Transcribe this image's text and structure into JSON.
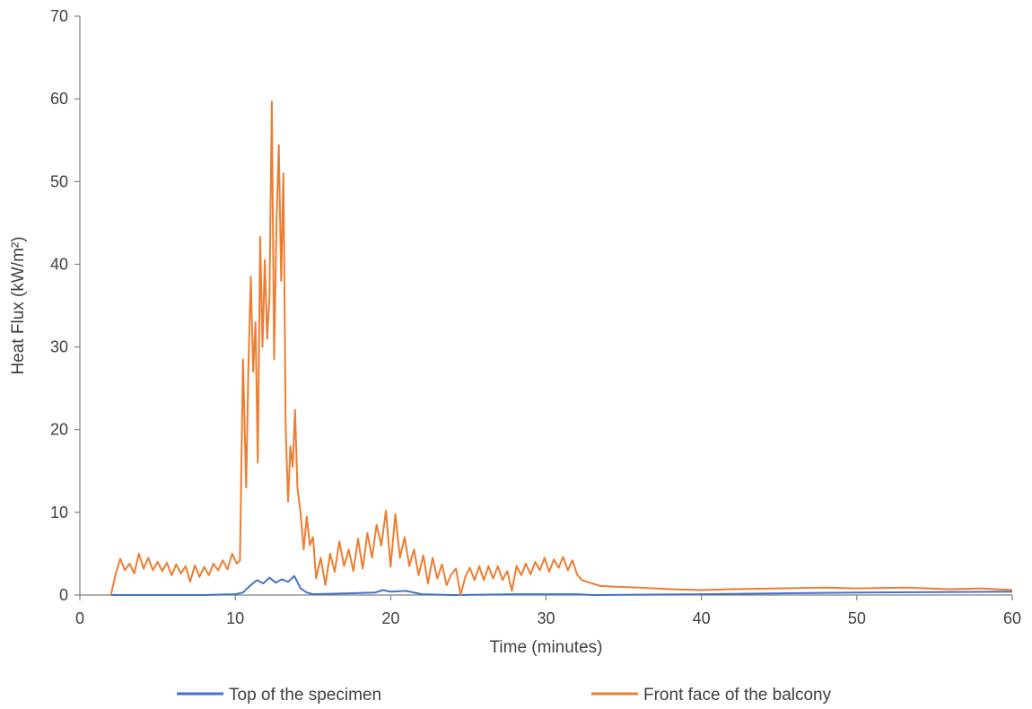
{
  "chart_data": {
    "type": "line",
    "xlabel": "Time (minutes)",
    "ylabel": "Heat Flux (kW/m²)",
    "xlim": [
      0,
      60
    ],
    "ylim": [
      0,
      70
    ],
    "x_ticks": [
      "0",
      "10",
      "20",
      "30",
      "40",
      "50",
      "60"
    ],
    "y_ticks": [
      "0",
      "10",
      "20",
      "30",
      "40",
      "50",
      "60",
      "70"
    ],
    "grid": false,
    "legend_position": "bottom",
    "series": [
      {
        "name": "Top of the specimen",
        "color": "#4472c4",
        "points": [
          [
            2,
            0
          ],
          [
            5,
            0
          ],
          [
            8,
            0
          ],
          [
            10,
            0.1
          ],
          [
            10.5,
            0.3
          ],
          [
            11,
            1.2
          ],
          [
            11.4,
            1.8
          ],
          [
            11.8,
            1.4
          ],
          [
            12.2,
            2.1
          ],
          [
            12.6,
            1.5
          ],
          [
            13,
            1.9
          ],
          [
            13.4,
            1.6
          ],
          [
            13.8,
            2.3
          ],
          [
            14.2,
            0.8
          ],
          [
            14.6,
            0.3
          ],
          [
            15,
            0.1
          ],
          [
            17,
            0.2
          ],
          [
            19,
            0.3
          ],
          [
            19.5,
            0.6
          ],
          [
            20,
            0.4
          ],
          [
            21,
            0.5
          ],
          [
            22,
            0.1
          ],
          [
            24,
            0
          ],
          [
            28,
            0.1
          ],
          [
            32,
            0.1
          ],
          [
            33,
            0
          ],
          [
            40,
            0.1
          ],
          [
            50,
            0.3
          ],
          [
            60,
            0.4
          ]
        ]
      },
      {
        "name": "Front face of the balcony",
        "color": "#ed7d31",
        "points": [
          [
            2.0,
            0
          ],
          [
            2.3,
            2.5
          ],
          [
            2.6,
            4.4
          ],
          [
            2.9,
            3.0
          ],
          [
            3.2,
            3.8
          ],
          [
            3.5,
            2.6
          ],
          [
            3.8,
            5.0
          ],
          [
            4.1,
            3.2
          ],
          [
            4.4,
            4.5
          ],
          [
            4.7,
            3.0
          ],
          [
            5.0,
            4.0
          ],
          [
            5.3,
            2.9
          ],
          [
            5.6,
            3.9
          ],
          [
            5.9,
            2.4
          ],
          [
            6.2,
            3.7
          ],
          [
            6.5,
            2.6
          ],
          [
            6.8,
            3.5
          ],
          [
            7.1,
            1.6
          ],
          [
            7.4,
            3.6
          ],
          [
            7.7,
            2.2
          ],
          [
            8.0,
            3.4
          ],
          [
            8.3,
            2.4
          ],
          [
            8.6,
            3.8
          ],
          [
            8.9,
            3.0
          ],
          [
            9.2,
            4.2
          ],
          [
            9.5,
            3.1
          ],
          [
            9.8,
            5.0
          ],
          [
            10.1,
            3.8
          ],
          [
            10.3,
            4.2
          ],
          [
            10.5,
            28.5
          ],
          [
            10.7,
            13.0
          ],
          [
            10.85,
            28.0
          ],
          [
            11.0,
            38.5
          ],
          [
            11.15,
            27.0
          ],
          [
            11.3,
            33.0
          ],
          [
            11.45,
            16.0
          ],
          [
            11.6,
            43.3
          ],
          [
            11.75,
            30.0
          ],
          [
            11.9,
            40.5
          ],
          [
            12.05,
            31.0
          ],
          [
            12.2,
            36.0
          ],
          [
            12.35,
            59.7
          ],
          [
            12.5,
            28.5
          ],
          [
            12.65,
            45.0
          ],
          [
            12.8,
            54.4
          ],
          [
            12.95,
            38.0
          ],
          [
            13.1,
            51.0
          ],
          [
            13.25,
            20.0
          ],
          [
            13.4,
            11.3
          ],
          [
            13.55,
            18.0
          ],
          [
            13.7,
            15.5
          ],
          [
            13.85,
            22.4
          ],
          [
            14.0,
            13.0
          ],
          [
            14.2,
            10.0
          ],
          [
            14.4,
            5.5
          ],
          [
            14.6,
            9.5
          ],
          [
            14.8,
            6.0
          ],
          [
            15.0,
            7.0
          ],
          [
            15.2,
            2.0
          ],
          [
            15.5,
            4.5
          ],
          [
            15.8,
            1.2
          ],
          [
            16.1,
            5.0
          ],
          [
            16.4,
            2.8
          ],
          [
            16.7,
            6.5
          ],
          [
            17.0,
            3.5
          ],
          [
            17.3,
            5.5
          ],
          [
            17.6,
            2.9
          ],
          [
            17.9,
            6.8
          ],
          [
            18.2,
            3.2
          ],
          [
            18.5,
            7.5
          ],
          [
            18.8,
            4.5
          ],
          [
            19.1,
            8.5
          ],
          [
            19.4,
            6.0
          ],
          [
            19.7,
            10.2
          ],
          [
            20.0,
            3.4
          ],
          [
            20.3,
            9.8
          ],
          [
            20.6,
            4.5
          ],
          [
            20.9,
            7.0
          ],
          [
            21.2,
            3.5
          ],
          [
            21.5,
            5.5
          ],
          [
            21.8,
            2.4
          ],
          [
            22.1,
            4.8
          ],
          [
            22.4,
            1.4
          ],
          [
            22.7,
            4.5
          ],
          [
            23.0,
            2.0
          ],
          [
            23.3,
            3.7
          ],
          [
            23.6,
            1.2
          ],
          [
            23.9,
            2.5
          ],
          [
            24.2,
            3.2
          ],
          [
            24.5,
            0.0
          ],
          [
            24.8,
            2.2
          ],
          [
            25.1,
            3.3
          ],
          [
            25.4,
            1.8
          ],
          [
            25.7,
            3.5
          ],
          [
            26.0,
            1.8
          ],
          [
            26.3,
            3.5
          ],
          [
            26.6,
            2.0
          ],
          [
            26.9,
            3.5
          ],
          [
            27.2,
            1.8
          ],
          [
            27.5,
            2.9
          ],
          [
            27.8,
            0.5
          ],
          [
            28.1,
            3.5
          ],
          [
            28.4,
            2.4
          ],
          [
            28.7,
            3.8
          ],
          [
            29.0,
            2.5
          ],
          [
            29.3,
            4.0
          ],
          [
            29.6,
            3.0
          ],
          [
            29.9,
            4.5
          ],
          [
            30.2,
            2.8
          ],
          [
            30.5,
            4.3
          ],
          [
            30.8,
            3.3
          ],
          [
            31.1,
            4.6
          ],
          [
            31.4,
            3.0
          ],
          [
            31.7,
            4.2
          ],
          [
            32.0,
            2.5
          ],
          [
            32.3,
            1.8
          ],
          [
            32.8,
            1.5
          ],
          [
            33.5,
            1.1
          ],
          [
            34.5,
            1.0
          ],
          [
            36.0,
            0.9
          ],
          [
            38.0,
            0.7
          ],
          [
            40.0,
            0.6
          ],
          [
            42.0,
            0.7
          ],
          [
            45.0,
            0.8
          ],
          [
            48.0,
            0.9
          ],
          [
            50.0,
            0.8
          ],
          [
            53.0,
            0.9
          ],
          [
            56.0,
            0.7
          ],
          [
            58.0,
            0.8
          ],
          [
            60.0,
            0.6
          ]
        ]
      }
    ]
  }
}
